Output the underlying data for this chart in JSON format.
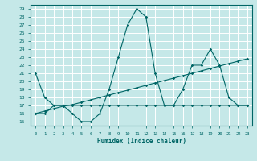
{
  "xlabel": "Humidex (Indice chaleur)",
  "xlim": [
    -0.5,
    23.5
  ],
  "ylim": [
    14.5,
    29.5
  ],
  "xticks": [
    0,
    1,
    2,
    3,
    4,
    5,
    6,
    7,
    8,
    9,
    10,
    11,
    12,
    13,
    14,
    15,
    16,
    17,
    18,
    19,
    20,
    21,
    22,
    23
  ],
  "yticks": [
    15,
    16,
    17,
    18,
    19,
    20,
    21,
    22,
    23,
    24,
    25,
    26,
    27,
    28,
    29
  ],
  "bg_color": "#c5e8e8",
  "line_color": "#006666",
  "grid_color": "#ffffff",
  "line1_x": [
    0,
    1,
    2,
    3,
    4,
    5,
    6,
    7,
    8,
    9,
    10,
    11,
    12,
    13,
    14,
    15,
    16,
    17,
    18,
    19,
    20,
    21,
    22,
    23
  ],
  "line1_y": [
    21,
    18,
    17,
    17,
    16,
    15,
    15,
    16,
    19,
    23,
    27,
    29,
    28,
    21,
    17,
    17,
    19,
    22,
    22,
    24,
    22,
    18,
    17,
    17
  ],
  "line2_x": [
    0,
    1,
    2,
    3,
    4,
    5,
    6,
    7,
    8,
    9,
    10,
    11,
    12,
    13,
    14,
    15,
    16,
    17,
    18,
    19,
    20,
    21,
    22,
    23
  ],
  "line2_y": [
    16,
    16,
    17,
    17,
    17,
    17,
    17,
    17,
    17,
    17,
    17,
    17,
    17,
    17,
    17,
    17,
    17,
    17,
    17,
    17,
    17,
    17,
    17,
    17
  ],
  "line3_x": [
    0,
    1,
    2,
    3,
    4,
    5,
    6,
    7,
    8,
    9,
    10,
    11,
    12,
    13,
    14,
    15,
    16,
    17,
    18,
    19,
    20,
    21,
    22,
    23
  ],
  "line3_y": [
    16,
    16.3,
    16.6,
    16.9,
    17.1,
    17.4,
    17.7,
    18.0,
    18.3,
    18.6,
    18.9,
    19.2,
    19.5,
    19.8,
    20.1,
    20.4,
    20.7,
    21.0,
    21.3,
    21.6,
    21.9,
    22.2,
    22.5,
    22.8
  ]
}
